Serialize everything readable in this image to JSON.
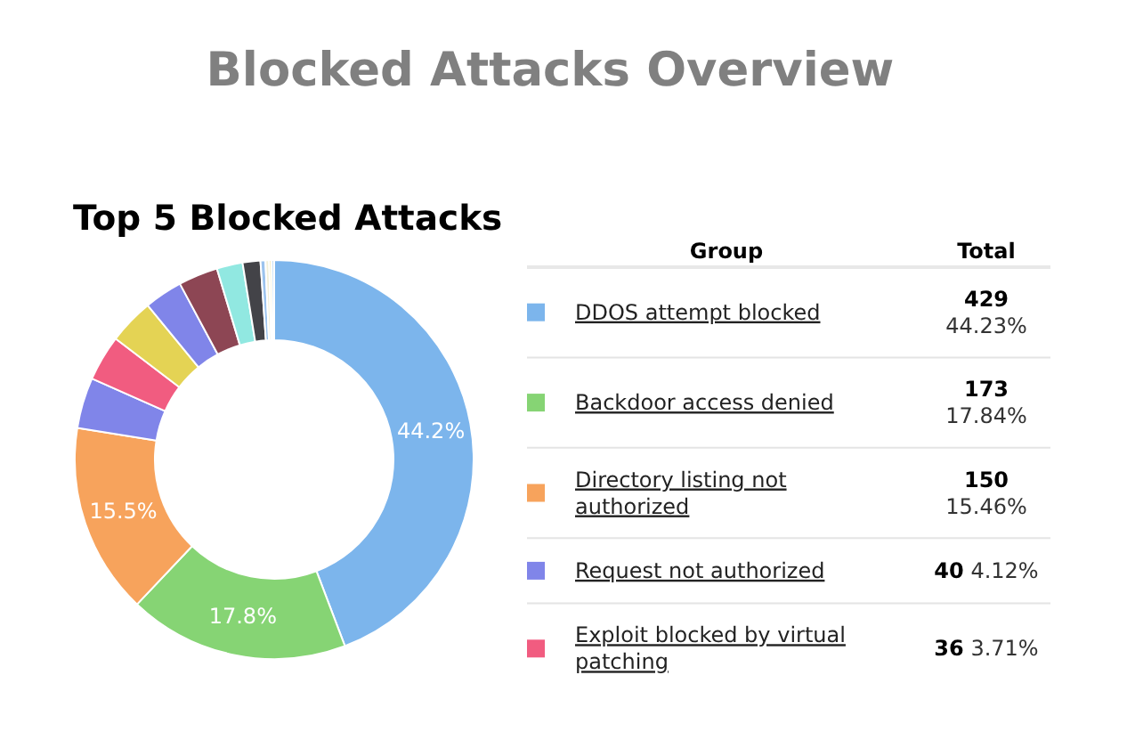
{
  "chart_data": {
    "type": "donut",
    "title": "Blocked Attacks Overview",
    "subtitle": "Top 5 Blocked Attacks",
    "categories": [
      "DDOS attempt blocked",
      "Backdoor access denied",
      "Directory listing not authorized",
      "Request not authorized",
      "Exploit blocked by virtual patching",
      null,
      null,
      null,
      null,
      null,
      null,
      null,
      null,
      null
    ],
    "values": [
      44.23,
      17.84,
      15.46,
      4.12,
      3.71,
      3.7,
      3.1,
      3.2,
      2.1,
      1.44,
      0.4,
      0.3,
      0.2,
      0.2
    ],
    "colors": [
      "#7cb5ec",
      "#86d474",
      "#f7a35c",
      "#8085e9",
      "#f15c80",
      "#e4d354",
      "#8085e9",
      "#8d4654",
      "#91e8e1",
      "#434348",
      "#9cc3ee",
      "#f2efd8",
      "#f4e39a",
      "#b9d9f2"
    ],
    "value_labels": [
      "44.2%",
      "17.8%",
      "15.5%",
      null,
      null,
      null,
      null,
      null,
      null,
      null,
      null,
      null,
      null,
      null
    ],
    "legend": "right",
    "legend_title": "Group",
    "annotations": [
      "Total",
      {
        "text": "429",
        "x": "DDOS attempt blocked"
      },
      {
        "text": "44.23%",
        "x": "DDOS attempt blocked"
      },
      {
        "text": "173",
        "x": "Backdoor access denied"
      },
      {
        "text": "17.84%",
        "x": "Backdoor access denied"
      },
      {
        "text": "150",
        "x": "Directory listing not authorized"
      },
      {
        "text": "15.46%",
        "x": "Directory listing not authorized"
      },
      {
        "text": "40",
        "x": "Request not authorized"
      },
      {
        "text": "4.12%",
        "x": "Request not authorized"
      },
      {
        "text": "36",
        "x": "Exploit blocked by virtual patching"
      },
      {
        "text": "3.71%",
        "x": "Exploit blocked by virtual patching"
      }
    ]
  }
}
